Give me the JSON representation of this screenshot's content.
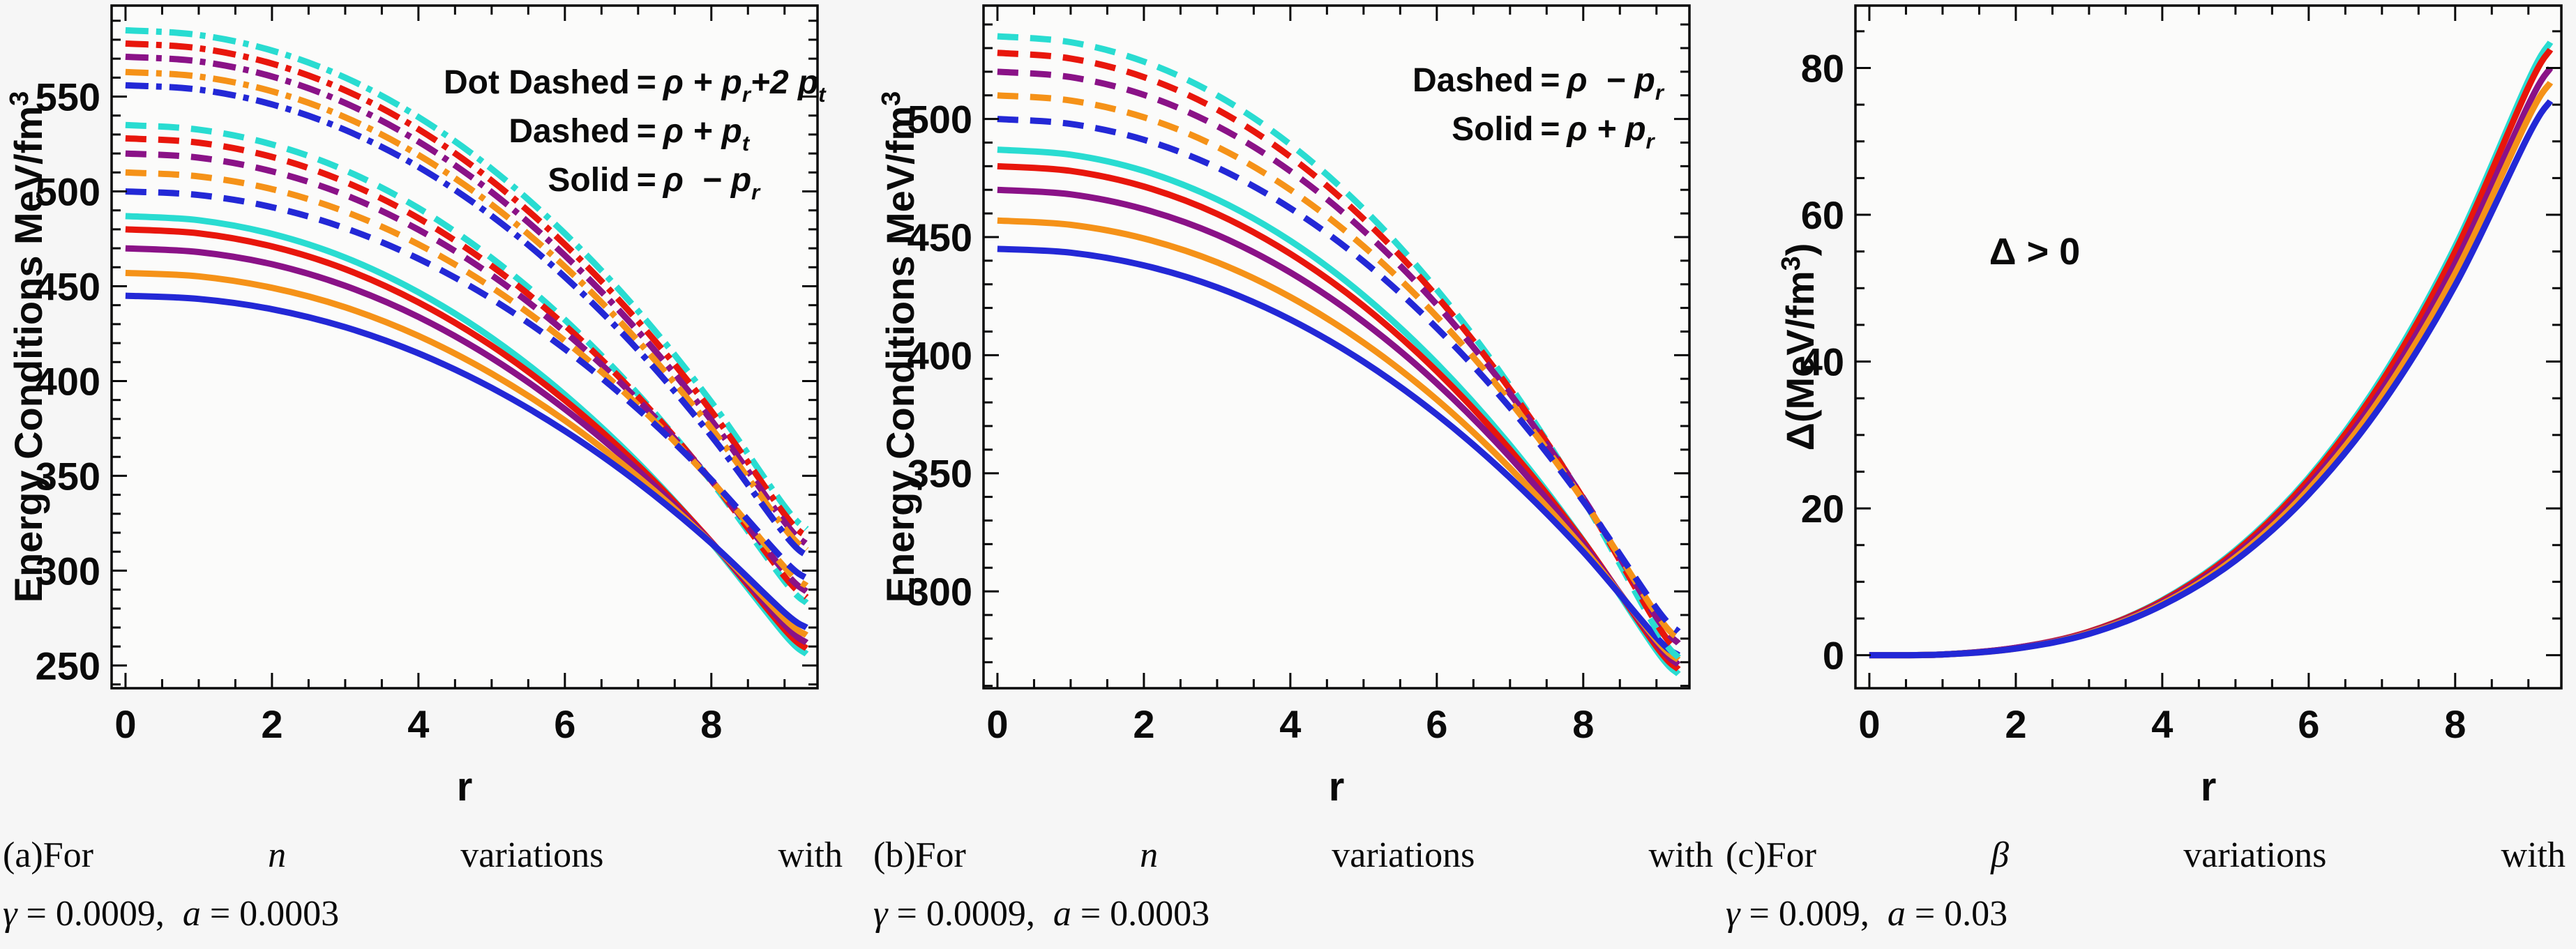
{
  "page": {
    "bg": "#f6f6f6",
    "plot_bg": "#fbfbfa",
    "frame_color": "#0a0a0a",
    "text_color": "#0a0a0a"
  },
  "chart_data": [
    {
      "id": "a",
      "type": "line",
      "xlabel": "r",
      "ylabel_main": "Energy Conditions MeV/fm",
      "ylabel_sup": "3",
      "ylabel_tail": "",
      "xlim": [
        -0.19,
        9.45
      ],
      "ylim": [
        238,
        598
      ],
      "xticks": [
        0,
        2,
        4,
        6,
        8
      ],
      "xminor_step": 0.5,
      "yticks": [
        250,
        300,
        350,
        400,
        450,
        500,
        550
      ],
      "yminor_step": 10,
      "x": [
        0,
        1,
        2,
        3,
        4,
        5,
        6,
        7,
        8,
        9,
        9.3
      ],
      "groups": [
        {
          "style": "solid",
          "meaning": "rho - p_r",
          "series": [
            {
              "name": "solid-cyan",
              "color": "#29DCD1",
              "y": [
                487,
                484.8,
                477.6,
                465.1,
                446.8,
                422.8,
                392.8,
                356.9,
                314.7,
                266.4,
                256
              ]
            },
            {
              "name": "solid-red",
              "color": "#E8160C",
              "y": [
                480,
                477.9,
                471.0,
                459.0,
                441.5,
                418.6,
                389.9,
                355.5,
                315.2,
                269.0,
                259
              ]
            },
            {
              "name": "solid-purple",
              "color": "#8A1287",
              "y": [
                470,
                468.0,
                461.6,
                450.2,
                433.8,
                412.2,
                385.2,
                352.8,
                314.9,
                271.4,
                262
              ]
            },
            {
              "name": "solid-orange",
              "color": "#F59218",
              "y": [
                457,
                455.2,
                449.2,
                438.9,
                423.8,
                403.9,
                379.2,
                349.4,
                314.6,
                274.6,
                266
              ]
            },
            {
              "name": "solid-blue",
              "color": "#2328D6",
              "y": [
                445,
                443.3,
                437.9,
                428.4,
                414.6,
                396.4,
                373.7,
                346.4,
                314.5,
                277.9,
                270
              ]
            }
          ]
        },
        {
          "style": "dashed",
          "meaning": "rho + p_t",
          "series": [
            {
              "name": "dashed-cyan",
              "color": "#29DCD1",
              "y": [
                535,
                532.6,
                524.8,
                511.1,
                491.2,
                464.9,
                432.3,
                393.0,
                347.0,
                294.4,
                283
              ]
            },
            {
              "name": "dashed-red",
              "color": "#E8160C",
              "y": [
                528,
                525.7,
                518.2,
                505.0,
                485.9,
                460.7,
                429.4,
                391.7,
                347.5,
                296.9,
                286
              ]
            },
            {
              "name": "dashed-purple",
              "color": "#8A1287",
              "y": [
                520,
                517.8,
                510.6,
                498.1,
                479.8,
                455.8,
                425.9,
                389.9,
                347.7,
                299.4,
                289
              ]
            },
            {
              "name": "dashed-orange",
              "color": "#F59218",
              "y": [
                510,
                507.9,
                501.2,
                489.3,
                472.1,
                449.4,
                421.2,
                387.2,
                347.4,
                301.8,
                292
              ]
            },
            {
              "name": "dashed-blue",
              "color": "#2328D6",
              "y": [
                500,
                498.1,
                491.7,
                480.6,
                464.5,
                443.3,
                416.9,
                385.1,
                347.9,
                305.2,
                296
              ]
            }
          ]
        },
        {
          "style": "dotdashed",
          "meaning": "rho + p_r + 2 p_t",
          "series": [
            {
              "name": "dotdashed-cyan",
              "color": "#29DCD1",
              "y": [
                585,
                582.5,
                574.3,
                560.0,
                539.2,
                511.9,
                477.8,
                436.9,
                388.9,
                333.9,
                322
              ]
            },
            {
              "name": "dotdashed-red",
              "color": "#E8160C",
              "y": [
                578,
                575.5,
                567.4,
                553.3,
                532.8,
                505.7,
                472.0,
                431.5,
                384.1,
                329.7,
                318
              ]
            },
            {
              "name": "dotdashed-purple",
              "color": "#8A1287",
              "y": [
                571,
                568.6,
                560.6,
                546.6,
                526.3,
                499.6,
                466.2,
                426.2,
                379.3,
                325.6,
                314
              ]
            },
            {
              "name": "dotdashed-orange",
              "color": "#F59218",
              "y": [
                563,
                560.6,
                552.8,
                539.1,
                519.2,
                493.0,
                460.3,
                421.0,
                375.1,
                322.4,
                311
              ]
            },
            {
              "name": "dotdashed-blue",
              "color": "#2328D6",
              "y": [
                556,
                553.7,
                545.9,
                532.4,
                512.9,
                487.1,
                454.9,
                416.3,
                371.0,
                319.2,
                308
              ]
            }
          ]
        }
      ],
      "legend_rows": [
        {
          "label": "Dot Dashed",
          "eq": "=",
          "formula": [
            {
              "t": "ρ + "
            },
            {
              "t": "p",
              "sub": "r"
            },
            {
              "t": "+2 "
            },
            {
              "t": "p",
              "sub": "t"
            }
          ]
        },
        {
          "label": "Dashed",
          "eq": "=",
          "formula": [
            {
              "t": "ρ + "
            },
            {
              "t": "p",
              "sub": "t"
            }
          ]
        },
        {
          "label": "Solid",
          "eq": "=",
          "formula": [
            {
              "t": "ρ  − "
            },
            {
              "t": "p",
              "sub": "r"
            }
          ]
        }
      ],
      "annotation": "",
      "caption": {
        "line1": [
          {
            "t": "(a)For"
          },
          {
            "t": "n",
            "it": true
          },
          {
            "t": "variations"
          },
          {
            "t": "with"
          }
        ],
        "line2": [
          {
            "t": "γ",
            "it": true
          },
          {
            "t": " = 0.0009,  "
          },
          {
            "t": "a",
            "it": true
          },
          {
            "t": " = 0.0003"
          }
        ]
      }
    },
    {
      "id": "b",
      "type": "line",
      "xlabel": "r",
      "ylabel_main": "Energy Conditions MeV/fm",
      "ylabel_sup": "3",
      "ylabel_tail": "",
      "xlim": [
        -0.19,
        9.45
      ],
      "ylim": [
        259,
        548
      ],
      "xticks": [
        0,
        2,
        4,
        6,
        8
      ],
      "xminor_step": 0.5,
      "yticks": [
        300,
        350,
        400,
        450,
        500
      ],
      "yminor_step": 10,
      "x": [
        0,
        1,
        2,
        3,
        4,
        5,
        6,
        7,
        8,
        9,
        9.3
      ],
      "groups": [
        {
          "style": "solid",
          "meaning": "rho + p_r",
          "series": [
            {
              "name": "solid-cyan",
              "color": "#29DCD1",
              "y": [
                487,
                484.9,
                478.0,
                465.9,
                448.4,
                425.3,
                396.5,
                361.9,
                321.4,
                275.0,
                265
              ]
            },
            {
              "name": "solid-red",
              "color": "#E8160C",
              "y": [
                480,
                478.0,
                471.4,
                459.8,
                442.9,
                420.8,
                393.2,
                360.0,
                321.2,
                276.6,
                267
              ]
            },
            {
              "name": "solid-purple",
              "color": "#8A1287",
              "y": [
                470,
                468.1,
                461.8,
                450.9,
                435.0,
                414.1,
                388.1,
                356.8,
                320.1,
                278.1,
                269
              ]
            },
            {
              "name": "solid-orange",
              "color": "#F59218",
              "y": [
                457,
                455.2,
                449.4,
                439.3,
                424.6,
                405.3,
                381.2,
                352.2,
                318.3,
                279.4,
                271
              ]
            },
            {
              "name": "solid-blue",
              "color": "#2328D6",
              "y": [
                445,
                443.4,
                438.0,
                428.7,
                415.1,
                397.2,
                374.9,
                348.1,
                316.7,
                280.5,
                273
              ]
            }
          ]
        },
        {
          "style": "dashed",
          "meaning": "rho - p_r",
          "series": [
            {
              "name": "dashed-cyan",
              "color": "#29DCD1",
              "y": [
                535,
                532.5,
                524.3,
                510.0,
                489.2,
                461.9,
                427.8,
                386.9,
                338.9,
                283.9,
                272
              ]
            },
            {
              "name": "dashed-red",
              "color": "#E8160C",
              "y": [
                528,
                525.6,
                517.7,
                504.0,
                484.0,
                457.7,
                424.9,
                385.5,
                339.3,
                286.4,
                275
              ]
            },
            {
              "name": "dashed-purple",
              "color": "#8A1287",
              "y": [
                520,
                517.7,
                510.2,
                497.0,
                477.9,
                452.7,
                421.4,
                383.7,
                339.5,
                288.9,
                278
              ]
            },
            {
              "name": "dashed-orange",
              "color": "#F59218",
              "y": [
                510,
                507.8,
                500.7,
                488.2,
                470.0,
                446.1,
                416.3,
                380.4,
                338.5,
                290.4,
                280
              ]
            },
            {
              "name": "dashed-blue",
              "color": "#2328D6",
              "y": [
                500,
                497.9,
                491.2,
                479.4,
                462.2,
                439.7,
                411.5,
                377.8,
                338.2,
                292.8,
                283
              ]
            }
          ]
        }
      ],
      "legend_rows": [
        {
          "label": "Dashed",
          "eq": "=",
          "formula": [
            {
              "t": "ρ  − "
            },
            {
              "t": "p",
              "sub": "r"
            }
          ]
        },
        {
          "label": "Solid",
          "eq": "=",
          "formula": [
            {
              "t": "ρ + "
            },
            {
              "t": "p",
              "sub": "r"
            }
          ]
        }
      ],
      "annotation": "",
      "caption": {
        "line1": [
          {
            "t": "(b)For"
          },
          {
            "t": "n",
            "it": true
          },
          {
            "t": "variations"
          },
          {
            "t": "with"
          }
        ],
        "line2": [
          {
            "t": "γ",
            "it": true
          },
          {
            "t": " = 0.0009,  "
          },
          {
            "t": "a",
            "it": true
          },
          {
            "t": " = 0.0003"
          }
        ]
      }
    },
    {
      "id": "c",
      "type": "line",
      "xlabel": "r",
      "ylabel_main": "Δ(MeV/fm",
      "ylabel_sup": "3",
      "ylabel_tail": ")",
      "xlim": [
        -0.19,
        9.45
      ],
      "ylim": [
        -4.5,
        88.5
      ],
      "xticks": [
        0,
        2,
        4,
        6,
        8
      ],
      "xminor_step": 0.5,
      "yticks": [
        0,
        20,
        40,
        60,
        80
      ],
      "yminor_step": 5,
      "x": [
        0,
        1,
        2,
        3,
        4,
        5,
        6,
        7,
        8,
        9,
        9.3
      ],
      "groups": [
        {
          "style": "solid",
          "meaning": "anisotropy Delta",
          "series": [
            {
              "name": "delta-cyan",
              "color": "#29DCD1",
              "y": [
                0,
                0.1,
                1.0,
                3.2,
                7.5,
                14.3,
                24.2,
                37.8,
                55.7,
                78.3,
                83.5
              ]
            },
            {
              "name": "delta-red",
              "color": "#E8160C",
              "y": [
                0,
                0.1,
                1.0,
                3.2,
                7.4,
                14.1,
                23.9,
                37.3,
                55.0,
                77.4,
                82.5
              ]
            },
            {
              "name": "delta-purple",
              "color": "#8A1287",
              "y": [
                0,
                0.1,
                1.0,
                3.1,
                7.2,
                13.7,
                23.2,
                36.2,
                53.4,
                75.0,
                80.0
              ]
            },
            {
              "name": "delta-orange",
              "color": "#F59218",
              "y": [
                0,
                0.1,
                0.9,
                3.0,
                7.0,
                13.3,
                22.6,
                35.3,
                52.0,
                73.2,
                78.0
              ]
            },
            {
              "name": "delta-blue",
              "color": "#2328D6",
              "y": [
                0,
                0.1,
                0.9,
                2.9,
                6.8,
                12.9,
                21.9,
                34.2,
                50.4,
                70.8,
                75.5
              ]
            }
          ]
        }
      ],
      "legend_rows": [],
      "annotation": "Δ > 0",
      "caption": {
        "line1": [
          {
            "t": "(c)For"
          },
          {
            "t": "β",
            "it": true
          },
          {
            "t": "variations"
          },
          {
            "t": "with"
          }
        ],
        "line2": [
          {
            "t": "γ",
            "it": true
          },
          {
            "t": " = 0.009,  "
          },
          {
            "t": "a",
            "it": true
          },
          {
            "t": " = 0.03"
          }
        ]
      }
    }
  ]
}
